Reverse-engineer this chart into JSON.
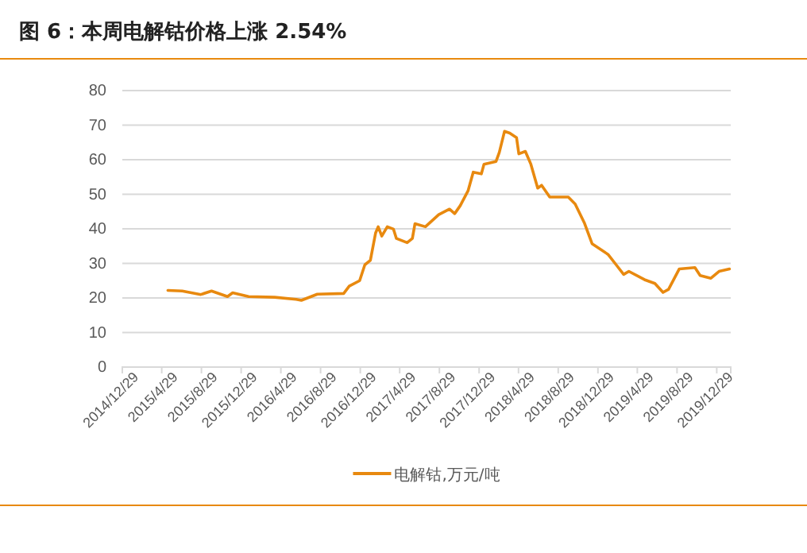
{
  "chart_data": {
    "type": "line",
    "title": "图 6：本周电解钴价格上涨 2.54%",
    "x": [
      "2015-05-18",
      "2015-07-01",
      "2015-08-27",
      "2015-09-29",
      "2015-11-17",
      "2015-12-03",
      "2016-01-21",
      "2016-04-10",
      "2016-06-15",
      "2016-07-01",
      "2016-08-19",
      "2016-11-08",
      "2016-11-25",
      "2016-12-27",
      "2017-01-12",
      "2017-01-29",
      "2017-02-14",
      "2017-02-22",
      "2017-03-05",
      "2017-03-22",
      "2017-04-10",
      "2017-04-19",
      "2017-05-22",
      "2017-06-07",
      "2017-06-15",
      "2017-07-17",
      "2017-08-27",
      "2017-09-29",
      "2017-10-15",
      "2017-11-01",
      "2017-11-25",
      "2017-12-11",
      "2018-01-05",
      "2018-01-13",
      "2018-02-19",
      "2018-03-01",
      "2018-03-17",
      "2018-04-02",
      "2018-04-23",
      "2018-04-30",
      "2018-05-20",
      "2018-06-06",
      "2018-06-27",
      "2018-07-09",
      "2018-08-03",
      "2018-09-29",
      "2018-10-20",
      "2018-11-17",
      "2018-12-11",
      "2019-01-29",
      "2019-02-23",
      "2019-03-18",
      "2019-04-03",
      "2019-05-21",
      "2019-06-22",
      "2019-07-17",
      "2019-08-03",
      "2019-09-05",
      "2019-10-23",
      "2019-11-08",
      "2019-12-11",
      "2020-01-05",
      "2020-02-06"
    ],
    "series": [
      {
        "name": "电解钴,万元/吨",
        "color": "#e8890f",
        "values": [
          22.2,
          22,
          21,
          22,
          20.4,
          21.5,
          20.4,
          20.2,
          19.6,
          19.3,
          21.1,
          21.3,
          23.4,
          25,
          29.6,
          30.9,
          38.8,
          40.6,
          37.9,
          40.6,
          39.9,
          37.2,
          36,
          37.2,
          41.5,
          40.6,
          44.1,
          45.7,
          44.4,
          46.7,
          51,
          56.4,
          55.9,
          58.7,
          59.5,
          62.1,
          68.2,
          67.7,
          66.4,
          61.7,
          62.4,
          58.7,
          51.8,
          52.6,
          49.2,
          49.2,
          47.2,
          41.8,
          35.7,
          32.6,
          29.6,
          26.8,
          27.7,
          25.3,
          24.2,
          21.6,
          22.5,
          28.4,
          28.8,
          26.5,
          25.7,
          27.7,
          28.4
        ]
      }
    ],
    "xlim": [
      "2014-12-29",
      "2020-02-10"
    ],
    "xticks": [
      {
        "value": "2014-12-29",
        "label": "2014/12/29"
      },
      {
        "value": "2015-04-29",
        "label": "2015/4/29"
      },
      {
        "value": "2015-08-29",
        "label": "2015/8/29"
      },
      {
        "value": "2015-12-29",
        "label": "2015/12/29"
      },
      {
        "value": "2016-04-29",
        "label": "2016/4/29"
      },
      {
        "value": "2016-08-29",
        "label": "2016/8/29"
      },
      {
        "value": "2016-12-29",
        "label": "2016/12/29"
      },
      {
        "value": "2017-04-29",
        "label": "2017/4/29"
      },
      {
        "value": "2017-08-29",
        "label": "2017/8/29"
      },
      {
        "value": "2017-12-29",
        "label": "2017/12/29"
      },
      {
        "value": "2018-04-29",
        "label": "2018/4/29"
      },
      {
        "value": "2018-08-29",
        "label": "2018/8/29"
      },
      {
        "value": "2018-12-29",
        "label": "2018/12/29"
      },
      {
        "value": "2019-04-29",
        "label": "2019/4/29"
      },
      {
        "value": "2019-08-29",
        "label": "2019/8/29"
      },
      {
        "value": "2019-12-29",
        "label": "2019/12/29"
      }
    ],
    "ylim": [
      0,
      80
    ],
    "yticks": [
      0,
      10,
      20,
      30,
      40,
      50,
      60,
      70,
      80
    ],
    "grid": "y",
    "legend": "bottom",
    "marker": "none",
    "line_style": "solid"
  }
}
